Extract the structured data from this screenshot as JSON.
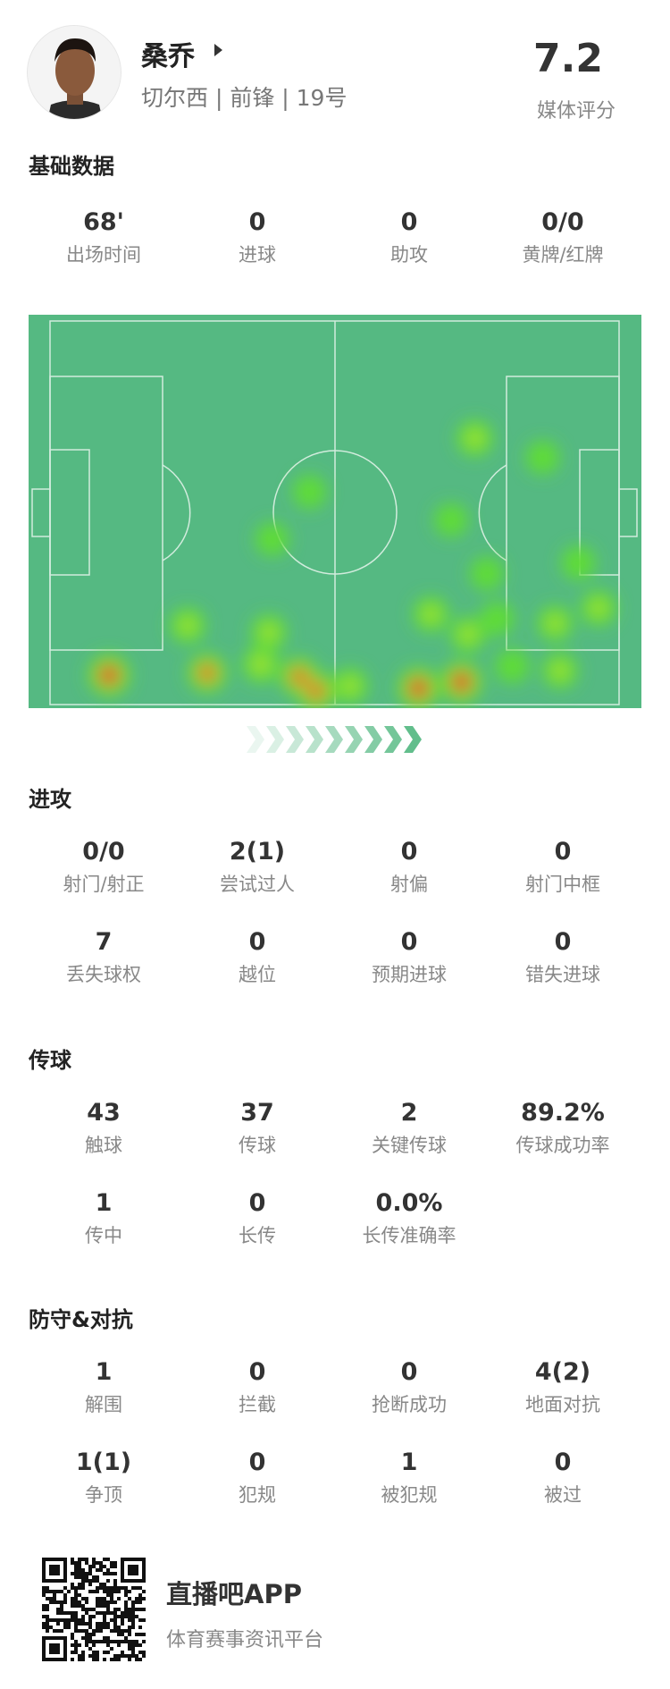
{
  "player": {
    "name": "桑乔",
    "team": "切尔西",
    "position": "前锋",
    "number": "19号",
    "subtitle": "切尔西 | 前锋 | 19号",
    "rating": "7.2",
    "rating_label": "媒体评分"
  },
  "basic": {
    "title": "基础数据",
    "stats": [
      {
        "v": "68'",
        "l": "出场时间"
      },
      {
        "v": "0",
        "l": "进球"
      },
      {
        "v": "0",
        "l": "助攻"
      },
      {
        "v": "0/0",
        "l": "黄牌/红牌"
      }
    ]
  },
  "heatmap": {
    "pitch_color": "#55b982",
    "line_color": "#e8f5ee",
    "units": "meters (105x68 pitch)",
    "points": [
      [
        78.4,
        20.8,
        0.55
      ],
      [
        90.9,
        24.2,
        0.35
      ],
      [
        47.9,
        30.3,
        0.35
      ],
      [
        74.0,
        35.3,
        0.35
      ],
      [
        41.0,
        38.7,
        0.35
      ],
      [
        80.6,
        44.8,
        0.35
      ],
      [
        97.5,
        42.9,
        0.4
      ],
      [
        101.2,
        50.9,
        0.5
      ],
      [
        93.2,
        53.6,
        0.5
      ],
      [
        70.3,
        52.0,
        0.5
      ],
      [
        77.1,
        55.6,
        0.5
      ],
      [
        82.5,
        52.8,
        0.4
      ],
      [
        25.4,
        54.0,
        0.5
      ],
      [
        29.0,
        62.4,
        0.8
      ],
      [
        10.9,
        62.8,
        1.0
      ],
      [
        40.4,
        55.2,
        0.5
      ],
      [
        38.9,
        60.9,
        0.6
      ],
      [
        46.0,
        63.1,
        0.8
      ],
      [
        49.1,
        65.6,
        0.8
      ],
      [
        55.4,
        64.7,
        0.5
      ],
      [
        68.0,
        65.1,
        1.0
      ],
      [
        75.9,
        64.0,
        1.0
      ],
      [
        85.3,
        61.2,
        0.4
      ],
      [
        94.1,
        62.0,
        0.5
      ]
    ],
    "direction_color": "#55b982"
  },
  "attack": {
    "title": "进攻",
    "stats": [
      {
        "v": "0/0",
        "l": "射门/射正"
      },
      {
        "v": "2(1)",
        "l": "尝试过人"
      },
      {
        "v": "0",
        "l": "射偏"
      },
      {
        "v": "0",
        "l": "射门中框"
      },
      {
        "v": "7",
        "l": "丢失球权"
      },
      {
        "v": "0",
        "l": "越位"
      },
      {
        "v": "0",
        "l": "预期进球"
      },
      {
        "v": "0",
        "l": "错失进球"
      }
    ]
  },
  "passing": {
    "title": "传球",
    "stats": [
      {
        "v": "43",
        "l": "触球"
      },
      {
        "v": "37",
        "l": "传球"
      },
      {
        "v": "2",
        "l": "关键传球"
      },
      {
        "v": "89.2%",
        "l": "传球成功率"
      },
      {
        "v": "1",
        "l": "传中"
      },
      {
        "v": "0",
        "l": "长传"
      },
      {
        "v": "0.0%",
        "l": "长传准确率"
      }
    ]
  },
  "defense": {
    "title": "防守&对抗",
    "stats": [
      {
        "v": "1",
        "l": "解围"
      },
      {
        "v": "0",
        "l": "拦截"
      },
      {
        "v": "0",
        "l": "抢断成功"
      },
      {
        "v": "4(2)",
        "l": "地面对抗"
      },
      {
        "v": "1(1)",
        "l": "争顶"
      },
      {
        "v": "0",
        "l": "犯规"
      },
      {
        "v": "1",
        "l": "被犯规"
      },
      {
        "v": "0",
        "l": "被过"
      }
    ]
  },
  "footer": {
    "app_name": "直播吧APP",
    "app_sub": "体育赛事资讯平台"
  }
}
